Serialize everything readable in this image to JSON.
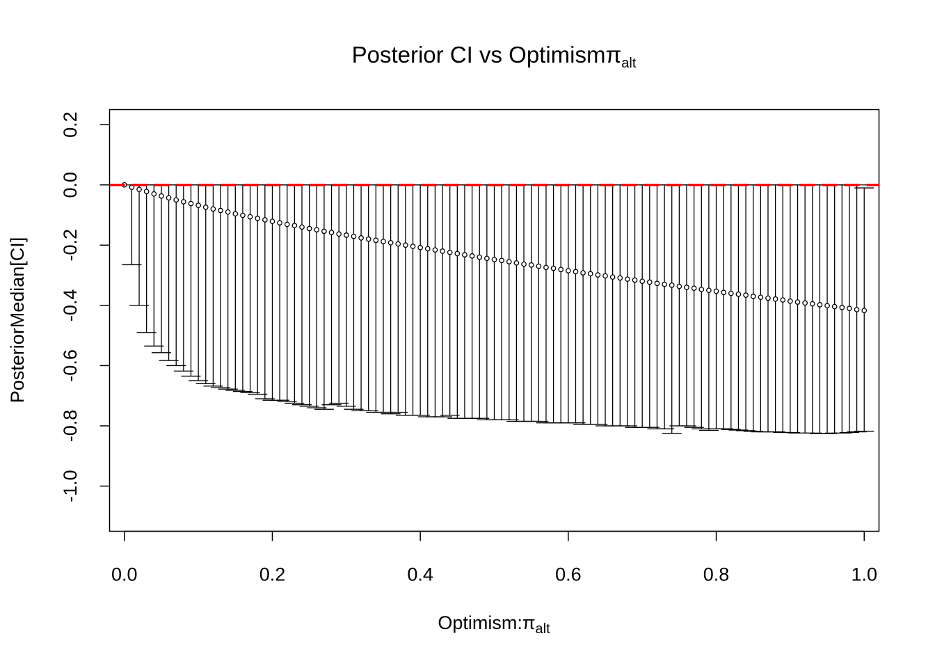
{
  "chart_data": {
    "type": "scatter",
    "title": "Posterior CI vs Optimism",
    "title_symbol": "π",
    "title_subscript": "alt",
    "xlabel": "Optimism:",
    "xlabel_symbol": "π",
    "xlabel_subscript": "alt",
    "ylabel": "PosteriorMedian[CI]",
    "xlim": [
      -0.02,
      1.02
    ],
    "ylim": [
      -1.15,
      0.25
    ],
    "x_ticks": [
      "0.0",
      "0.2",
      "0.4",
      "0.6",
      "0.8",
      "1.0"
    ],
    "y_ticks": [
      "-1.0",
      "-0.8",
      "-0.6",
      "-0.4",
      "-0.2",
      "0.0",
      "0.2"
    ],
    "x_tick_values": [
      0.0,
      0.2,
      0.4,
      0.6,
      0.8,
      1.0
    ],
    "y_tick_values": [
      -1.0,
      -0.8,
      -0.6,
      -0.4,
      -0.2,
      0.0,
      0.2
    ],
    "grid": false,
    "legend": "none",
    "reference_line": {
      "y": 0.0,
      "color": "#ff0000",
      "style": "dashed"
    },
    "series": [
      {
        "marker": "open-circle",
        "color": "#000000",
        "error_bars": true,
        "x": [
          0.0,
          0.01,
          0.02,
          0.03,
          0.04,
          0.05,
          0.06,
          0.07,
          0.08,
          0.09,
          0.1,
          0.11,
          0.12,
          0.13,
          0.14,
          0.15,
          0.16,
          0.17,
          0.18,
          0.19,
          0.2,
          0.21,
          0.22,
          0.23,
          0.24,
          0.25,
          0.26,
          0.27,
          0.28,
          0.29,
          0.3,
          0.31,
          0.32,
          0.33,
          0.34,
          0.35,
          0.36,
          0.37,
          0.38,
          0.39,
          0.4,
          0.41,
          0.42,
          0.43,
          0.44,
          0.45,
          0.46,
          0.47,
          0.48,
          0.49,
          0.5,
          0.51,
          0.52,
          0.53,
          0.54,
          0.55,
          0.56,
          0.57,
          0.58,
          0.59,
          0.6,
          0.61,
          0.62,
          0.63,
          0.64,
          0.65,
          0.66,
          0.67,
          0.68,
          0.69,
          0.7,
          0.71,
          0.72,
          0.73,
          0.74,
          0.75,
          0.76,
          0.77,
          0.78,
          0.79,
          0.8,
          0.81,
          0.82,
          0.83,
          0.84,
          0.85,
          0.86,
          0.87,
          0.88,
          0.89,
          0.9,
          0.91,
          0.92,
          0.93,
          0.94,
          0.95,
          0.96,
          0.97,
          0.98,
          0.99,
          1.0
        ],
        "y": [
          0.0,
          -0.008,
          -0.015,
          -0.022,
          -0.03,
          -0.037,
          -0.043,
          -0.05,
          -0.056,
          -0.062,
          -0.068,
          -0.074,
          -0.08,
          -0.085,
          -0.09,
          -0.096,
          -0.101,
          -0.106,
          -0.111,
          -0.116,
          -0.121,
          -0.126,
          -0.131,
          -0.135,
          -0.14,
          -0.145,
          -0.149,
          -0.154,
          -0.158,
          -0.163,
          -0.167,
          -0.171,
          -0.176,
          -0.18,
          -0.184,
          -0.188,
          -0.192,
          -0.196,
          -0.2,
          -0.204,
          -0.208,
          -0.212,
          -0.216,
          -0.22,
          -0.224,
          -0.228,
          -0.232,
          -0.236,
          -0.24,
          -0.244,
          -0.248,
          -0.251,
          -0.255,
          -0.259,
          -0.263,
          -0.266,
          -0.27,
          -0.274,
          -0.277,
          -0.281,
          -0.285,
          -0.288,
          -0.292,
          -0.295,
          -0.299,
          -0.302,
          -0.306,
          -0.309,
          -0.313,
          -0.316,
          -0.32,
          -0.323,
          -0.327,
          -0.33,
          -0.333,
          -0.337,
          -0.34,
          -0.343,
          -0.347,
          -0.35,
          -0.353,
          -0.357,
          -0.36,
          -0.363,
          -0.366,
          -0.37,
          -0.373,
          -0.376,
          -0.379,
          -0.382,
          -0.386,
          -0.389,
          -0.392,
          -0.395,
          -0.398,
          -0.401,
          -0.404,
          -0.407,
          -0.41,
          -0.414,
          -0.417
        ],
        "upper": [
          0.0,
          0.0,
          0.0,
          0.0,
          0.0,
          0.0,
          0.0,
          0.0,
          0.0,
          0.0,
          0.0,
          0.0,
          0.0,
          0.0,
          0.0,
          0.0,
          0.0,
          0.0,
          0.0,
          0.0,
          0.0,
          0.0,
          0.0,
          0.0,
          0.0,
          0.0,
          0.0,
          0.0,
          0.0,
          0.0,
          0.0,
          0.0,
          0.0,
          0.0,
          0.0,
          0.0,
          0.0,
          0.0,
          0.0,
          0.0,
          0.0,
          0.0,
          0.0,
          0.0,
          0.0,
          0.0,
          0.0,
          0.0,
          0.0,
          0.0,
          0.0,
          0.0,
          0.0,
          0.0,
          0.0,
          0.0,
          0.0,
          0.0,
          0.0,
          0.0,
          0.0,
          0.0,
          0.0,
          0.0,
          0.0,
          0.0,
          0.0,
          0.0,
          0.0,
          0.0,
          0.0,
          0.0,
          0.0,
          0.0,
          0.0,
          0.0,
          0.0,
          0.0,
          0.0,
          0.0,
          0.0,
          0.0,
          0.0,
          0.0,
          0.0,
          0.0,
          0.0,
          0.0,
          0.0,
          0.0,
          0.0,
          0.0,
          0.0,
          0.0,
          0.0,
          0.0,
          0.0,
          0.0,
          0.0,
          0.0,
          -0.01
        ],
        "lower": [
          0.0,
          -0.265,
          -0.4,
          -0.49,
          -0.535,
          -0.557,
          -0.583,
          -0.6,
          -0.618,
          -0.635,
          -0.65,
          -0.66,
          -0.668,
          -0.673,
          -0.678,
          -0.682,
          -0.686,
          -0.69,
          -0.695,
          -0.71,
          -0.715,
          -0.715,
          -0.72,
          -0.725,
          -0.73,
          -0.735,
          -0.74,
          -0.745,
          -0.73,
          -0.725,
          -0.735,
          -0.745,
          -0.75,
          -0.75,
          -0.755,
          -0.755,
          -0.76,
          -0.755,
          -0.765,
          -0.765,
          -0.765,
          -0.77,
          -0.77,
          -0.77,
          -0.765,
          -0.775,
          -0.775,
          -0.775,
          -0.775,
          -0.78,
          -0.78,
          -0.78,
          -0.78,
          -0.785,
          -0.785,
          -0.785,
          -0.785,
          -0.79,
          -0.79,
          -0.79,
          -0.79,
          -0.79,
          -0.795,
          -0.795,
          -0.795,
          -0.8,
          -0.8,
          -0.8,
          -0.8,
          -0.805,
          -0.805,
          -0.805,
          -0.81,
          -0.81,
          -0.825,
          -0.8,
          -0.8,
          -0.805,
          -0.81,
          -0.815,
          -0.81,
          -0.81,
          -0.812,
          -0.814,
          -0.816,
          -0.818,
          -0.82,
          -0.82,
          -0.82,
          -0.822,
          -0.822,
          -0.824,
          -0.824,
          -0.824,
          -0.826,
          -0.826,
          -0.824,
          -0.824,
          -0.822,
          -0.82,
          -0.818
        ]
      }
    ]
  }
}
